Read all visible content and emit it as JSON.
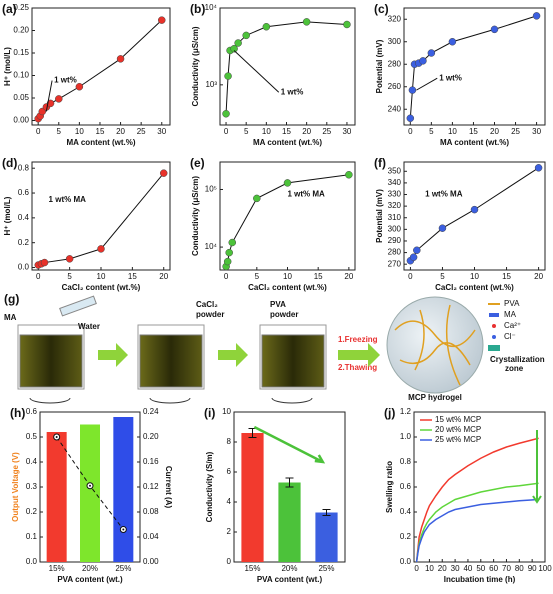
{
  "chart_data": [
    {
      "type": "line",
      "label": "(a)",
      "xlabel": "MA content (wt.%)",
      "ylabel": "H⁺ (mol/L)",
      "annotation": "1 wt%",
      "color": "#e8322a",
      "markers": true,
      "x": [
        0,
        0.5,
        1,
        2,
        3,
        5,
        10,
        20,
        30
      ],
      "values": [
        0.004,
        0.01,
        0.02,
        0.03,
        0.038,
        0.048,
        0.075,
        0.137,
        0.223
      ],
      "xlim": [
        -1.5,
        32
      ],
      "xticks": [
        0,
        5,
        10,
        15,
        20,
        25,
        30
      ],
      "ylim": [
        -0.01,
        0.25
      ],
      "yticks": [
        {
          "value": 0,
          "label": "0.00"
        },
        {
          "value": 0.05,
          "label": "0.05"
        },
        {
          "value": 0.1,
          "label": "0.10"
        },
        {
          "value": 0.15,
          "label": "0.15"
        },
        {
          "value": 0.2,
          "label": "0.20"
        },
        {
          "value": 0.25,
          "label": "0.25"
        }
      ]
    },
    {
      "type": "line",
      "label": "(b)",
      "xlabel": "MA content (wt.%)",
      "ylabel": "Conductivity (μS/cm)",
      "annotation": "1 wt%",
      "color": "#4cc23a",
      "markers": true,
      "ylog": true,
      "x": [
        0,
        0.5,
        1,
        2,
        3,
        5,
        10,
        20,
        30
      ],
      "values": [
        420,
        1300,
        2800,
        2950,
        3500,
        4400,
        5700,
        6600,
        6100
      ],
      "xlim": [
        -1.5,
        32
      ],
      "xticks": [
        0,
        5,
        10,
        15,
        20,
        25,
        30
      ],
      "ylim": [
        300,
        10000
      ],
      "yticks": [
        {
          "value": 1000,
          "label": "10³"
        },
        {
          "value": 10000,
          "label": "10⁴"
        }
      ]
    },
    {
      "type": "line",
      "label": "(c)",
      "xlabel": "MA content (wt.%)",
      "ylabel": "Potential (mV)",
      "annotation": "1 wt%",
      "color": "#3b5fe0",
      "markers": true,
      "x": [
        0,
        0.5,
        1,
        2,
        3,
        5,
        10,
        20,
        30
      ],
      "values": [
        232,
        257,
        280,
        281,
        283,
        290,
        300,
        311,
        323
      ],
      "xlim": [
        -1.5,
        32
      ],
      "xticks": [
        0,
        5,
        10,
        15,
        20,
        25,
        30
      ],
      "ylim": [
        226,
        330
      ],
      "yticks": [
        240,
        260,
        280,
        300,
        320
      ]
    },
    {
      "type": "line",
      "label": "(d)",
      "xlabel": "CaCl₂ content (wt.%)",
      "ylabel": "H⁺ (mol/L)",
      "annotation": "1 wt% MA",
      "color": "#e8322a",
      "markers": true,
      "x": [
        0,
        0.5,
        1,
        5,
        10,
        20
      ],
      "values": [
        0.02,
        0.03,
        0.04,
        0.07,
        0.15,
        0.76
      ],
      "xlim": [
        -1,
        21
      ],
      "xticks": [
        0,
        5,
        10,
        15,
        20
      ],
      "ylim": [
        -0.02,
        0.85
      ],
      "yticks": [
        {
          "value": 0,
          "label": "0.0"
        },
        0.2,
        0.4,
        0.6,
        0.8
      ]
    },
    {
      "type": "line",
      "label": "(e)",
      "xlabel": "CaCl₂ content (wt.%)",
      "ylabel": "Conductivity (μS/cm)",
      "annotation": "1 wt% MA",
      "color": "#4cc23a",
      "markers": true,
      "ylog": true,
      "x": [
        0,
        0.25,
        0.5,
        1,
        5,
        10,
        20
      ],
      "values": [
        4600,
        5600,
        8000,
        12000,
        70000,
        130000,
        180000
      ],
      "xlim": [
        -1,
        21
      ],
      "xticks": [
        0,
        5,
        10,
        15,
        20
      ],
      "ylim": [
        4000,
        300000
      ],
      "yticks": [
        {
          "value": 10000,
          "label": "10⁴"
        },
        {
          "value": 100000,
          "label": "10⁵"
        }
      ]
    },
    {
      "type": "line",
      "label": "(f)",
      "xlabel": "CaCl₂ content (wt.%)",
      "ylabel": "Potential (mV)",
      "annotation": "1 wt% MA",
      "color": "#3b5fe0",
      "markers": true,
      "x": [
        0,
        0.5,
        1,
        5,
        10,
        20
      ],
      "values": [
        273,
        276,
        282,
        301,
        317,
        353
      ],
      "xlim": [
        -1,
        21
      ],
      "xticks": [
        0,
        5,
        10,
        15,
        20
      ],
      "ylim": [
        265,
        358
      ],
      "yticks": [
        270,
        280,
        290,
        300,
        310,
        320,
        330,
        340,
        350
      ]
    },
    {
      "type": "bar",
      "label": "(h)",
      "xlabel": "PVA content (wt.)",
      "ylabel": "Output Voltage (V)",
      "ylabel_color": "#f0821e",
      "y2label": "Current (A)",
      "categories": [
        "15%",
        "20%",
        "25%"
      ],
      "values": [
        0.52,
        0.55,
        0.58
      ],
      "colors": [
        "#f23a2e",
        "#7ee62c",
        "#2f4de8"
      ],
      "line_values": [
        0.2,
        0.122,
        0.052
      ],
      "ylim": [
        0,
        0.6
      ],
      "yticks": [
        {
          "value": 0,
          "label": "0.0"
        },
        0.1,
        0.2,
        0.3,
        0.4,
        0.5,
        0.6
      ],
      "y2lim": [
        0,
        0.24
      ],
      "y2ticks": [
        {
          "value": 0,
          "label": "0.00"
        },
        {
          "value": 0.04,
          "label": "0.04"
        },
        {
          "value": 0.08,
          "label": "0.08"
        },
        {
          "value": 0.12,
          "label": "0.12"
        },
        {
          "value": 0.16,
          "label": "0.16"
        },
        {
          "value": 0.2,
          "label": "0.20"
        },
        {
          "value": 0.24,
          "label": "0.24"
        }
      ]
    },
    {
      "type": "bar",
      "label": "(i)",
      "xlabel": "PVA content (wt.)",
      "ylabel": "Conductivity (S/m)",
      "categories": [
        "15%",
        "20%",
        "25%"
      ],
      "values": [
        8.6,
        5.3,
        3.3
      ],
      "errors": [
        0.3,
        0.3,
        0.2
      ],
      "colors": [
        "#f23a2e",
        "#4cc23a",
        "#3b5fe0"
      ],
      "ylim": [
        0,
        10
      ],
      "yticks": [
        0,
        2,
        4,
        6,
        8,
        10
      ]
    },
    {
      "type": "line",
      "label": "(j)",
      "xlabel": "Incubation time (h)",
      "ylabel": "Swelling ratio",
      "legend": "upper left",
      "x": [
        0,
        1,
        2,
        4,
        6,
        8,
        10,
        15,
        20,
        25,
        30,
        40,
        50,
        60,
        70,
        80,
        95
      ],
      "series": [
        {
          "name": "15 wt% MCP",
          "color": "#f23a2e",
          "values": [
            0,
            0.1,
            0.2,
            0.28,
            0.34,
            0.4,
            0.45,
            0.53,
            0.6,
            0.66,
            0.7,
            0.77,
            0.83,
            0.88,
            0.92,
            0.95,
            0.99
          ]
        },
        {
          "name": "20 wt% MCP",
          "color": "#5fd63a",
          "values": [
            0,
            0.08,
            0.15,
            0.22,
            0.27,
            0.31,
            0.34,
            0.4,
            0.44,
            0.47,
            0.5,
            0.53,
            0.56,
            0.58,
            0.6,
            0.61,
            0.63
          ]
        },
        {
          "name": "25 wt% MCP",
          "color": "#3b5fe0",
          "values": [
            0,
            0.07,
            0.13,
            0.19,
            0.24,
            0.27,
            0.3,
            0.34,
            0.37,
            0.4,
            0.42,
            0.44,
            0.46,
            0.47,
            0.48,
            0.49,
            0.5
          ]
        }
      ],
      "xlim": [
        -2,
        100
      ],
      "xticks": [
        0,
        10,
        20,
        30,
        40,
        50,
        60,
        70,
        80,
        90,
        100
      ],
      "ylim": [
        0,
        1.2
      ],
      "yticks": [
        {
          "value": 0,
          "label": "0.0"
        },
        0.2,
        0.4,
        0.6,
        0.8,
        {
          "value": 1,
          "label": "1.0"
        },
        1.2
      ]
    }
  ],
  "diagram": {
    "label": "(g)",
    "ma": "MA",
    "water": "Water",
    "cacl2": [
      "CaCl₂",
      "powder"
    ],
    "pva": [
      "PVA",
      "powder"
    ],
    "step1": "1.Freezing",
    "step2": "2.Thawing",
    "product": "MCP hydrogel",
    "legend": [
      "PVA",
      "MA",
      "Ca²⁺",
      "Cl⁻"
    ],
    "zone": [
      "Crystallization",
      "zone"
    ]
  }
}
